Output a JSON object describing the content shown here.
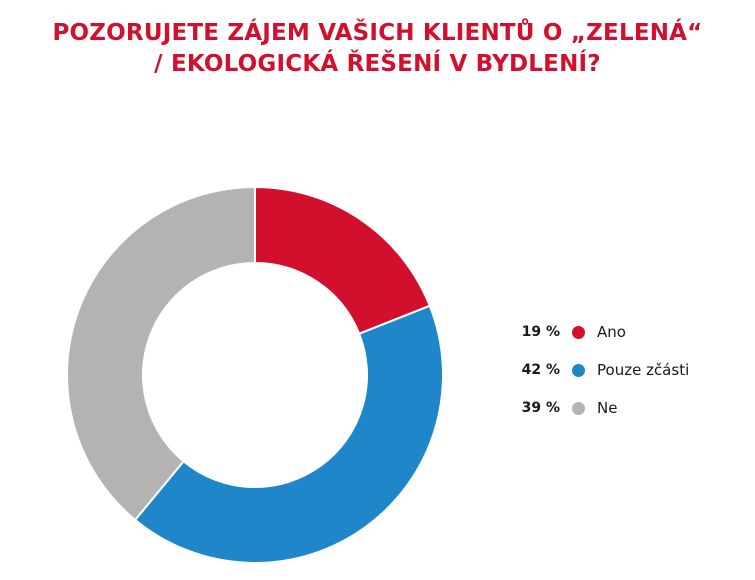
{
  "chart_data": {
    "type": "pie",
    "title_lines": [
      "POZORUJETE ZÁJEM VAŠICH KLIENTŮ O „ZELENÁ“",
      "/ EKOLOGICKÁ ŘEŠENÍ V BYDLENÍ?"
    ],
    "categories": [
      "Ano",
      "Pouze zčásti",
      "Ne"
    ],
    "values": [
      19,
      42,
      39
    ],
    "value_labels": [
      "19 %",
      "42 %",
      "39 %"
    ],
    "colors": [
      "#d2102e",
      "#1f87c9",
      "#b3b3b3"
    ],
    "donut": true,
    "legend_position": "right"
  }
}
